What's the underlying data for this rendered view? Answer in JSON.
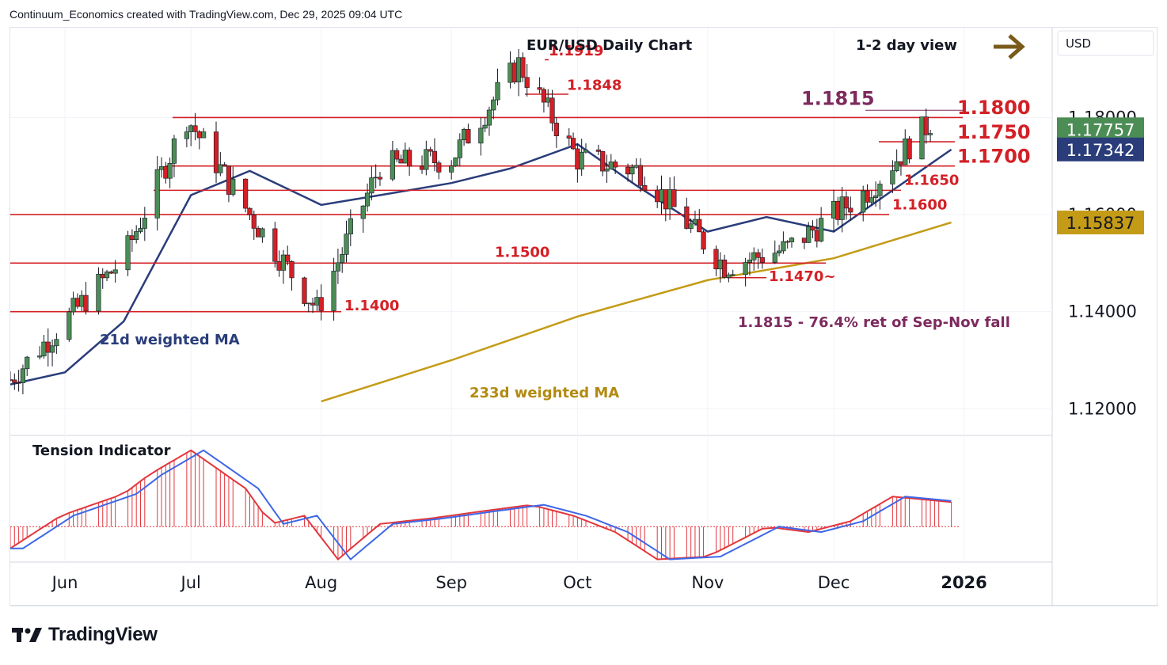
{
  "header": {
    "credit": "Continuum_Economics created with TradingView.com, Dec 29, 2025 09:04 UTC"
  },
  "footer": {
    "brand": "TradingView"
  },
  "colors": {
    "up_candle": "#4c8d56",
    "down_candle": "#d32026",
    "level_line": "#d32026",
    "ma21": "#2a3d7a",
    "ma233": "#c49b16",
    "tension_blue": "#3d67e8",
    "tension_red": "#e2373d",
    "annotation_purple": "#7d2a5e",
    "arrow": "#7a5a1a"
  },
  "chart_data": {
    "type": "candlestick",
    "title": "EUR/USD Daily Chart",
    "view_label": "1-2 day view",
    "view_arrow": "right-arrow-icon",
    "currency_button": "USD",
    "price_axis": {
      "ticks": [
        "1.18000",
        "1.16000",
        "1.14000",
        "1.12000"
      ],
      "range": [
        1.1145,
        1.1985
      ]
    },
    "time_axis": {
      "ticks": [
        "Jun",
        "Jul",
        "Aug",
        "Sep",
        "Oct",
        "Nov",
        "Dec",
        "2026"
      ],
      "range": [
        "2025-05-19",
        "2026-01-22"
      ]
    },
    "price_badges": [
      {
        "label": "1.17757",
        "color": "#4c8d56",
        "text_color": "#ffffff"
      },
      {
        "label": "1.17342",
        "color": "#2a3d7a",
        "text_color": "#ffffff"
      },
      {
        "label": "1.15837",
        "color": "#c49b16",
        "text_color": "#131722"
      }
    ],
    "levels": [
      {
        "price": 1.1919,
        "label": "1.1919"
      },
      {
        "price": 1.1848,
        "label": "1.1848"
      },
      {
        "price": 1.1815,
        "label": "1.1815"
      },
      {
        "price": 1.18,
        "label": "1.1800"
      },
      {
        "price": 1.175,
        "label": "1.1750"
      },
      {
        "price": 1.17,
        "label": "1.1700"
      },
      {
        "price": 1.165,
        "label": "1.1650"
      },
      {
        "price": 1.16,
        "label": "1.1600"
      },
      {
        "price": 1.15,
        "label": "1.1500"
      },
      {
        "price": 1.147,
        "label": "1.1470~"
      },
      {
        "price": 1.14,
        "label": "1.1400"
      }
    ],
    "annotations": {
      "fib": "1.1815 - 76.4% ret of Sep-Nov fall",
      "ma21_label": "21d weighted MA",
      "ma233_label": "233d weighted MA"
    },
    "ma21": [
      [
        "2025-05-19",
        1.125
      ],
      [
        "2025-06-01",
        1.1275
      ],
      [
        "2025-06-15",
        1.138
      ],
      [
        "2025-07-01",
        1.164
      ],
      [
        "2025-07-15",
        1.169
      ],
      [
        "2025-08-01",
        1.162
      ],
      [
        "2025-08-15",
        1.164
      ],
      [
        "2025-09-01",
        1.1665
      ],
      [
        "2025-09-15",
        1.1695
      ],
      [
        "2025-10-01",
        1.1745
      ],
      [
        "2025-10-15",
        1.166
      ],
      [
        "2025-11-01",
        1.1565
      ],
      [
        "2025-11-15",
        1.1595
      ],
      [
        "2025-12-01",
        1.1565
      ],
      [
        "2025-12-15",
        1.165
      ],
      [
        "2025-12-29",
        1.1734
      ]
    ],
    "ma233": [
      [
        "2025-08-01",
        1.1215
      ],
      [
        "2025-09-01",
        1.13
      ],
      [
        "2025-10-01",
        1.139
      ],
      [
        "2025-11-01",
        1.1465
      ],
      [
        "2025-12-01",
        1.151
      ],
      [
        "2025-12-29",
        1.1584
      ]
    ],
    "candles": [
      [
        "2025-05-19",
        1.1245,
        1.1275,
        1.1225,
        1.126
      ],
      [
        "2025-06-01",
        1.135,
        1.1395,
        1.132,
        1.138
      ],
      [
        "2025-06-15",
        1.1545,
        1.161,
        1.148,
        1.151
      ],
      [
        "2025-06-30",
        1.178,
        1.1825,
        1.176,
        1.18
      ],
      [
        "2025-07-15",
        1.161,
        1.168,
        1.158,
        1.16
      ],
      [
        "2025-07-31",
        1.141,
        1.146,
        1.1395,
        1.1405
      ],
      [
        "2025-08-15",
        1.169,
        1.172,
        1.165,
        1.17
      ],
      [
        "2025-09-01",
        1.171,
        1.1745,
        1.169,
        1.1715
      ],
      [
        "2025-09-17",
        1.183,
        1.1919,
        1.18,
        1.191
      ],
      [
        "2025-10-01",
        1.1735,
        1.176,
        1.17,
        1.1715
      ],
      [
        "2025-10-16",
        1.168,
        1.172,
        1.165,
        1.169
      ],
      [
        "2025-11-05",
        1.149,
        1.151,
        1.147,
        1.1495
      ],
      [
        "2025-11-20",
        1.152,
        1.154,
        1.15,
        1.153
      ],
      [
        "2025-12-09",
        1.164,
        1.167,
        1.162,
        1.165
      ],
      [
        "2025-12-24",
        1.1785,
        1.1805,
        1.1765,
        1.179
      ]
    ]
  },
  "tension_indicator": {
    "title": "Tension Indicator",
    "range": [
      -0.065,
      0.16
    ],
    "zero": 0,
    "points": [
      [
        "2025-05-19",
        -0.04
      ],
      [
        "2025-05-31",
        0.02
      ],
      [
        "2025-06-15",
        0.06
      ],
      [
        "2025-06-21",
        0.095
      ],
      [
        "2025-07-01",
        0.14
      ],
      [
        "2025-07-14",
        0.07
      ],
      [
        "2025-07-20",
        0.005
      ],
      [
        "2025-07-28",
        0.02
      ],
      [
        "2025-08-05",
        -0.06
      ],
      [
        "2025-08-15",
        0.005
      ],
      [
        "2025-08-27",
        0.015
      ],
      [
        "2025-09-10",
        0.03
      ],
      [
        "2025-09-20",
        0.04
      ],
      [
        "2025-09-30",
        0.02
      ],
      [
        "2025-10-10",
        -0.01
      ],
      [
        "2025-10-20",
        -0.06
      ],
      [
        "2025-11-01",
        -0.055
      ],
      [
        "2025-11-15",
        0.0
      ],
      [
        "2025-11-25",
        -0.01
      ],
      [
        "2025-12-05",
        0.01
      ],
      [
        "2025-12-15",
        0.055
      ],
      [
        "2025-12-29",
        0.045
      ]
    ]
  }
}
